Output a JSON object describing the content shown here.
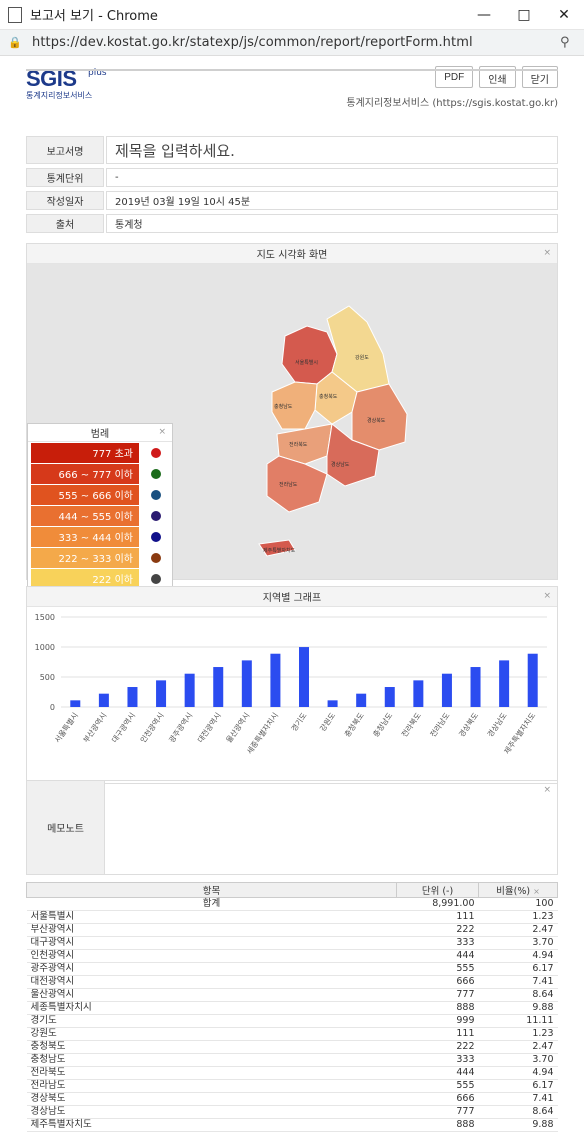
{
  "window": {
    "title": "보고서 보기 - Chrome",
    "url": "https://dev.kostat.go.kr/statexp/js/common/report/reportForm.html"
  },
  "brand": {
    "logo": "SGIS",
    "logo_plus": "plus",
    "logo_sub": "통계지리정보서비스",
    "site_info": "통계지리정보서비스 (https://sgis.kostat.go.kr)"
  },
  "buttons": {
    "pdf": "PDF",
    "print": "인쇄",
    "close": "닫기"
  },
  "info": [
    {
      "label": "보고서명",
      "value": "제목을 입력하세요."
    },
    {
      "label": "통계단위",
      "value": "-"
    },
    {
      "label": "작성일자",
      "value": "2019년 03월 19일 10시 45분"
    },
    {
      "label": "출처",
      "value": "통계청"
    }
  ],
  "map_panel": {
    "title": "지도 시각화 화면",
    "close": "×"
  },
  "legend": {
    "title": "범례",
    "close": "×",
    "items": [
      {
        "label": "777 초과",
        "color": "#c81e0a"
      },
      {
        "label": "666 ~ 777 이하",
        "color": "#d6391a"
      },
      {
        "label": "555 ~ 666 이하",
        "color": "#e0531f"
      },
      {
        "label": "444 ~ 555 이하",
        "color": "#e97030"
      },
      {
        "label": "333 ~ 444 이하",
        "color": "#f08c3a"
      },
      {
        "label": "222 ~ 333 이하",
        "color": "#f4a94a"
      },
      {
        "label": "222 이하",
        "color": "#f8d25a"
      }
    ],
    "dot_colors": [
      "#1a6b1a",
      "#1a5080",
      "#2a1a70",
      "#10108a",
      "#8a3a10"
    ]
  },
  "map_labels": [
    {
      "name": "서울특별시",
      "value": "111"
    },
    {
      "name": "인천광역시",
      "value": "444"
    },
    {
      "name": "경기도",
      "value": "999"
    },
    {
      "name": "강원도",
      "value": "111"
    },
    {
      "name": "충청북도",
      "value": "222"
    },
    {
      "name": "충청남도",
      "value": "333"
    },
    {
      "name": "세종특별자치시",
      "value": "888"
    },
    {
      "name": "대전광역시",
      "value": "666"
    },
    {
      "name": "경상북도",
      "value": "666"
    },
    {
      "name": "전라북도",
      "value": "444"
    },
    {
      "name": "대구광역시",
      "value": "333"
    },
    {
      "name": "경상남도",
      "value": "777"
    },
    {
      "name": "울산광역시",
      "value": "777"
    },
    {
      "name": "광주광역시",
      "value": "555"
    },
    {
      "name": "부산광역시",
      "value": "222"
    },
    {
      "name": "전라남도",
      "value": "555"
    },
    {
      "name": "제주특별자치도",
      "value": "888"
    }
  ],
  "chart_panel": {
    "title": "지역별 그래프",
    "close": "×"
  },
  "chart_data": {
    "type": "bar",
    "categories": [
      "서울특별시",
      "부산광역시",
      "대구광역시",
      "인천광역시",
      "광주광역시",
      "대전광역시",
      "울산광역시",
      "세종특별자치시",
      "경기도",
      "강원도",
      "충청북도",
      "충청남도",
      "전라북도",
      "전라남도",
      "경상북도",
      "경상남도",
      "제주특별자치도"
    ],
    "values": [
      111,
      222,
      333,
      444,
      555,
      666,
      777,
      888,
      999,
      111,
      222,
      333,
      444,
      555,
      666,
      777,
      888
    ],
    "yticks": [
      0,
      500,
      1000,
      1500
    ],
    "ylim": [
      0,
      1500
    ],
    "color": "#2b4cf0",
    "grid": true
  },
  "memo": {
    "label": "메모노트",
    "close": "×"
  },
  "table": {
    "headers": [
      "항목",
      "단위 (-)",
      "비율(%)"
    ],
    "close": "×",
    "total": {
      "name": "합계",
      "value": "8,991.00",
      "ratio": "100"
    },
    "rows": [
      {
        "name": "서울특별시",
        "value": "111",
        "ratio": "1.23"
      },
      {
        "name": "부산광역시",
        "value": "222",
        "ratio": "2.47"
      },
      {
        "name": "대구광역시",
        "value": "333",
        "ratio": "3.70"
      },
      {
        "name": "인천광역시",
        "value": "444",
        "ratio": "4.94"
      },
      {
        "name": "광주광역시",
        "value": "555",
        "ratio": "6.17"
      },
      {
        "name": "대전광역시",
        "value": "666",
        "ratio": "7.41"
      },
      {
        "name": "울산광역시",
        "value": "777",
        "ratio": "8.64"
      },
      {
        "name": "세종특별자치시",
        "value": "888",
        "ratio": "9.88"
      },
      {
        "name": "경기도",
        "value": "999",
        "ratio": "11.11"
      },
      {
        "name": "강원도",
        "value": "111",
        "ratio": "1.23"
      },
      {
        "name": "충청북도",
        "value": "222",
        "ratio": "2.47"
      },
      {
        "name": "충청남도",
        "value": "333",
        "ratio": "3.70"
      },
      {
        "name": "전라북도",
        "value": "444",
        "ratio": "4.94"
      },
      {
        "name": "전라남도",
        "value": "555",
        "ratio": "6.17"
      },
      {
        "name": "경상북도",
        "value": "666",
        "ratio": "7.41"
      },
      {
        "name": "경상남도",
        "value": "777",
        "ratio": "8.64"
      },
      {
        "name": "제주특별자치도",
        "value": "888",
        "ratio": "9.88"
      }
    ]
  }
}
